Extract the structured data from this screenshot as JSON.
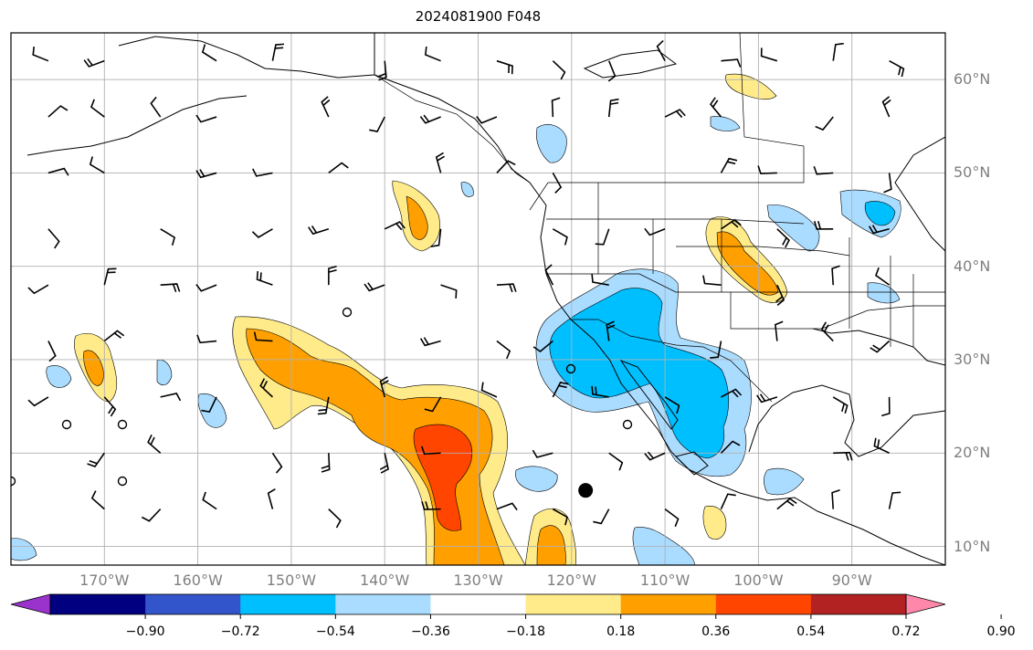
{
  "title": "2024081900 F048",
  "map": {
    "lat_labels": [
      "60°N",
      "50°N",
      "40°N",
      "30°N",
      "20°N",
      "10°N"
    ],
    "lon_labels": [
      "170°W",
      "160°W",
      "150°W",
      "140°W",
      "130°W",
      "120°W",
      "110°W",
      "100°W",
      "90°W"
    ],
    "lat_values": [
      60,
      50,
      40,
      30,
      20,
      10
    ],
    "lon_values": [
      -170,
      -160,
      -150,
      -140,
      -130,
      -120,
      -110,
      -100,
      -90
    ],
    "gridlines": true,
    "marker": {
      "lon": -118.5,
      "lat": 16.0
    }
  },
  "colorbar": {
    "ticks": [
      "−0.90",
      "−0.72",
      "−0.54",
      "−0.36",
      "−0.18",
      "0.18",
      "0.36",
      "0.54",
      "0.72",
      "0.90"
    ],
    "colors": [
      "#9933cc",
      "#000080",
      "#3355cc",
      "#00bfff",
      "#aadcff",
      "#ffffff",
      "#ffeb8a",
      "#ffa000",
      "#ff4500",
      "#b22222",
      "#ff88aa"
    ],
    "extend": "both"
  },
  "colors": {
    "neg_light": "#aadcff",
    "neg_mid": "#00bfff",
    "pos_light": "#ffeb8a",
    "pos_mid": "#ffa000",
    "pos_strong": "#ff4500"
  }
}
